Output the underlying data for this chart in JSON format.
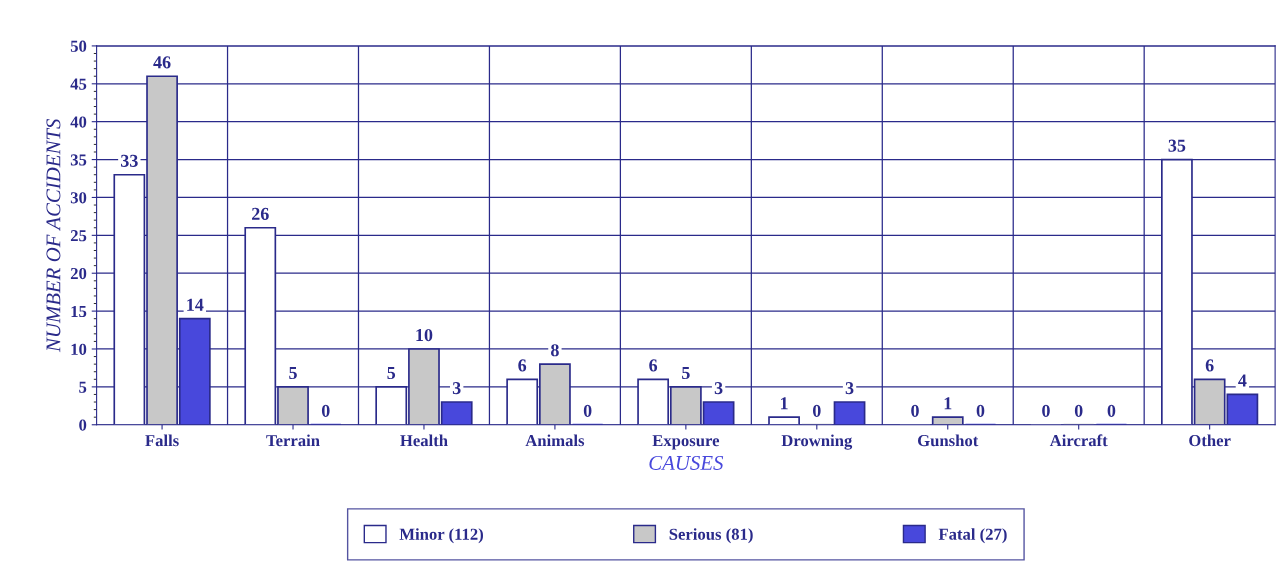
{
  "chart_data": {
    "type": "bar",
    "xlabel": "CAUSES",
    "ylabel": "NUMBER OF ACCIDENTS",
    "categories": [
      "Falls",
      "Terrain",
      "Health",
      "Animals",
      "Exposure",
      "Drowning",
      "Gunshot",
      "Aircraft",
      "Other"
    ],
    "series": [
      {
        "name": "Minor (112)",
        "color": "#ffffff",
        "values": [
          33,
          26,
          5,
          6,
          6,
          1,
          0,
          0,
          35
        ]
      },
      {
        "name": "Serious (81)",
        "color": "#c8c8c8",
        "values": [
          46,
          5,
          10,
          8,
          5,
          0,
          1,
          0,
          6
        ]
      },
      {
        "name": "Fatal (27)",
        "color": "#4848dc",
        "values": [
          14,
          0,
          3,
          0,
          3,
          3,
          0,
          0,
          4
        ]
      }
    ],
    "ylim": [
      0,
      50
    ],
    "yticks": [
      0,
      5,
      10,
      15,
      20,
      25,
      30,
      35,
      40,
      45,
      50
    ],
    "grid": true,
    "legend": "bottom",
    "data_labels": true
  }
}
